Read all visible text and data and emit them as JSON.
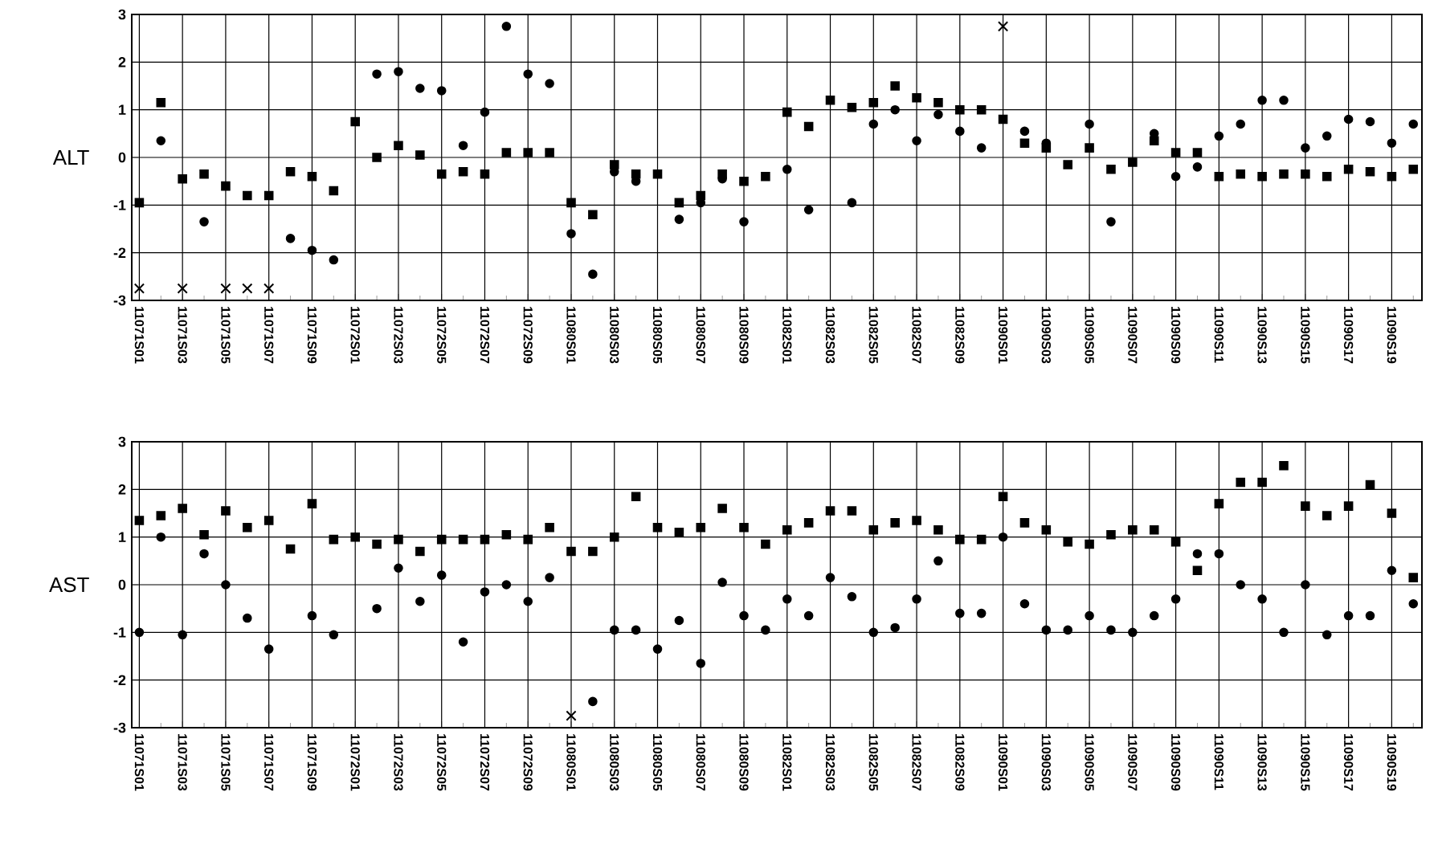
{
  "chart_data": [
    {
      "type": "scatter",
      "ylabel": "ALT",
      "categories": [
        "11071S01",
        null,
        "11071S03",
        null,
        "11071S05",
        null,
        "11071S07",
        null,
        "11071S09",
        null,
        "11072S01",
        null,
        "11072S03",
        null,
        "11072S05",
        null,
        "11072S07",
        null,
        "11072S09",
        null,
        "11080S01",
        null,
        "11080S03",
        null,
        "11080S05",
        null,
        "11080S07",
        null,
        "11080S09",
        null,
        "11082S01",
        null,
        "11082S03",
        null,
        "11082S05",
        null,
        "11082S07",
        null,
        "11082S09",
        null,
        "11090S01",
        null,
        "11090S03",
        null,
        "11090S05",
        null,
        "11090S07",
        null,
        "11090S09",
        null,
        "11090S11",
        null,
        "11090S13",
        null,
        "11090S15",
        null,
        "11090S17",
        null,
        "11090S19",
        null
      ],
      "series": [
        {
          "color": "#000000",
          "marker": "square",
          "values": [
            -0.95,
            1.15,
            -0.45,
            -0.35,
            -0.6,
            -0.8,
            -0.8,
            -0.3,
            -0.4,
            -0.7,
            0.75,
            0.0,
            0.25,
            0.05,
            -0.35,
            -0.3,
            -0.35,
            0.1,
            0.1,
            0.1,
            -0.95,
            -1.2,
            -0.15,
            -0.35,
            -0.35,
            -0.95,
            -0.8,
            -0.35,
            -0.5,
            -0.4,
            0.95,
            0.65,
            1.2,
            1.05,
            1.15,
            1.5,
            1.25,
            1.15,
            1.0,
            1.0,
            0.8,
            0.3,
            0.2,
            -0.15,
            0.2,
            -0.25,
            -0.1,
            0.35,
            0.1,
            0.1,
            -0.4,
            -0.35,
            -0.4,
            -0.35,
            -0.35,
            -0.4,
            -0.25,
            -0.3,
            -0.4,
            -0.25
          ]
        },
        {
          "color": "#000000",
          "marker": "circle",
          "values": [
            null,
            0.35,
            null,
            -1.35,
            null,
            null,
            null,
            -1.7,
            -1.95,
            -2.15,
            null,
            1.75,
            1.8,
            1.45,
            1.4,
            0.25,
            0.95,
            2.75,
            1.75,
            1.55,
            -1.6,
            -2.45,
            -0.3,
            -0.5,
            null,
            -1.3,
            -0.95,
            -0.45,
            -1.35,
            null,
            -0.25,
            -1.1,
            null,
            -0.95,
            0.7,
            1.0,
            0.35,
            0.9,
            0.55,
            0.2,
            null,
            0.55,
            0.3,
            null,
            0.7,
            -1.35,
            null,
            0.5,
            -0.4,
            -0.2,
            0.45,
            0.7,
            1.2,
            1.2,
            0.2,
            0.45,
            0.8,
            0.75,
            0.3,
            0.7
          ]
        },
        {
          "color": "#000000",
          "marker": "cross",
          "values": [
            -2.75,
            null,
            -2.75,
            null,
            -2.75,
            -2.75,
            -2.75,
            null,
            null,
            null,
            null,
            null,
            null,
            null,
            null,
            null,
            null,
            null,
            null,
            null,
            null,
            null,
            null,
            null,
            null,
            null,
            null,
            null,
            null,
            null,
            null,
            null,
            null,
            null,
            null,
            null,
            null,
            null,
            null,
            null,
            2.75,
            null,
            null,
            null,
            null,
            null,
            null,
            null,
            null,
            null,
            null,
            null,
            null,
            null,
            null,
            null,
            null,
            null,
            null,
            null
          ]
        }
      ],
      "ylim": [
        -3,
        3
      ],
      "yticks": [
        -3,
        -2,
        -1,
        0,
        1,
        2,
        3
      ],
      "grid": true
    },
    {
      "type": "scatter",
      "ylabel": "AST",
      "categories": [
        "11071S01",
        null,
        "11071S03",
        null,
        "11071S05",
        null,
        "11071S07",
        null,
        "11071S09",
        null,
        "11072S01",
        null,
        "11072S03",
        null,
        "11072S05",
        null,
        "11072S07",
        null,
        "11072S09",
        null,
        "11080S01",
        null,
        "11080S03",
        null,
        "11080S05",
        null,
        "11080S07",
        null,
        "11080S09",
        null,
        "11082S01",
        null,
        "11082S03",
        null,
        "11082S05",
        null,
        "11082S07",
        null,
        "11082S09",
        null,
        "11090S01",
        null,
        "11090S03",
        null,
        "11090S05",
        null,
        "11090S07",
        null,
        "11090S09",
        null,
        "11090S11",
        null,
        "11090S13",
        null,
        "11090S15",
        null,
        "11090S17",
        null,
        "11090S19",
        null
      ],
      "series": [
        {
          "color": "#000000",
          "marker": "square",
          "values": [
            1.35,
            1.45,
            1.6,
            1.05,
            1.55,
            1.2,
            1.35,
            0.75,
            1.7,
            0.95,
            1.0,
            0.85,
            0.95,
            0.7,
            0.95,
            0.95,
            0.95,
            1.05,
            0.95,
            1.2,
            0.7,
            0.7,
            1.0,
            1.85,
            1.2,
            1.1,
            1.2,
            1.6,
            1.2,
            0.85,
            1.15,
            1.3,
            1.55,
            1.55,
            1.15,
            1.3,
            1.35,
            1.15,
            0.95,
            0.95,
            1.85,
            1.3,
            1.15,
            0.9,
            0.85,
            1.05,
            1.15,
            1.15,
            0.9,
            0.3,
            1.7,
            2.15,
            2.15,
            2.5,
            1.65,
            1.45,
            1.65,
            2.1,
            1.5,
            0.15
          ]
        },
        {
          "color": "#000000",
          "marker": "circle",
          "values": [
            -1.0,
            1.0,
            -1.05,
            0.65,
            0.0,
            -0.7,
            -1.35,
            null,
            -0.65,
            -1.05,
            null,
            -0.5,
            0.35,
            -0.35,
            0.2,
            -1.2,
            -0.15,
            0.0,
            -0.35,
            0.15,
            null,
            -2.45,
            -0.95,
            -0.95,
            -1.35,
            -0.75,
            -1.65,
            0.05,
            -0.65,
            -0.95,
            -0.3,
            -0.65,
            0.15,
            -0.25,
            -1.0,
            -0.9,
            -0.3,
            0.5,
            -0.6,
            -0.6,
            1.0,
            -0.4,
            -0.95,
            -0.95,
            -0.65,
            -0.95,
            -1.0,
            -0.65,
            -0.3,
            0.65,
            0.65,
            0.0,
            -0.3,
            -1.0,
            0.0,
            -1.05,
            -0.65,
            -0.65,
            0.3,
            -0.4
          ]
        },
        {
          "color": "#000000",
          "marker": "cross",
          "values": [
            null,
            null,
            null,
            null,
            null,
            null,
            null,
            null,
            null,
            null,
            null,
            null,
            null,
            null,
            null,
            null,
            null,
            null,
            null,
            null,
            -2.75,
            null,
            null,
            null,
            null,
            null,
            null,
            null,
            null,
            null,
            null,
            null,
            null,
            null,
            null,
            null,
            null,
            null,
            null,
            null,
            null,
            null,
            null,
            null,
            null,
            null,
            null,
            null,
            null,
            null,
            null,
            null,
            null,
            null,
            null,
            null,
            null,
            null,
            null,
            null
          ]
        }
      ],
      "ylim": [
        -3,
        3
      ],
      "yticks": [
        -3,
        -2,
        -1,
        0,
        1,
        2,
        3
      ],
      "grid": true
    }
  ]
}
